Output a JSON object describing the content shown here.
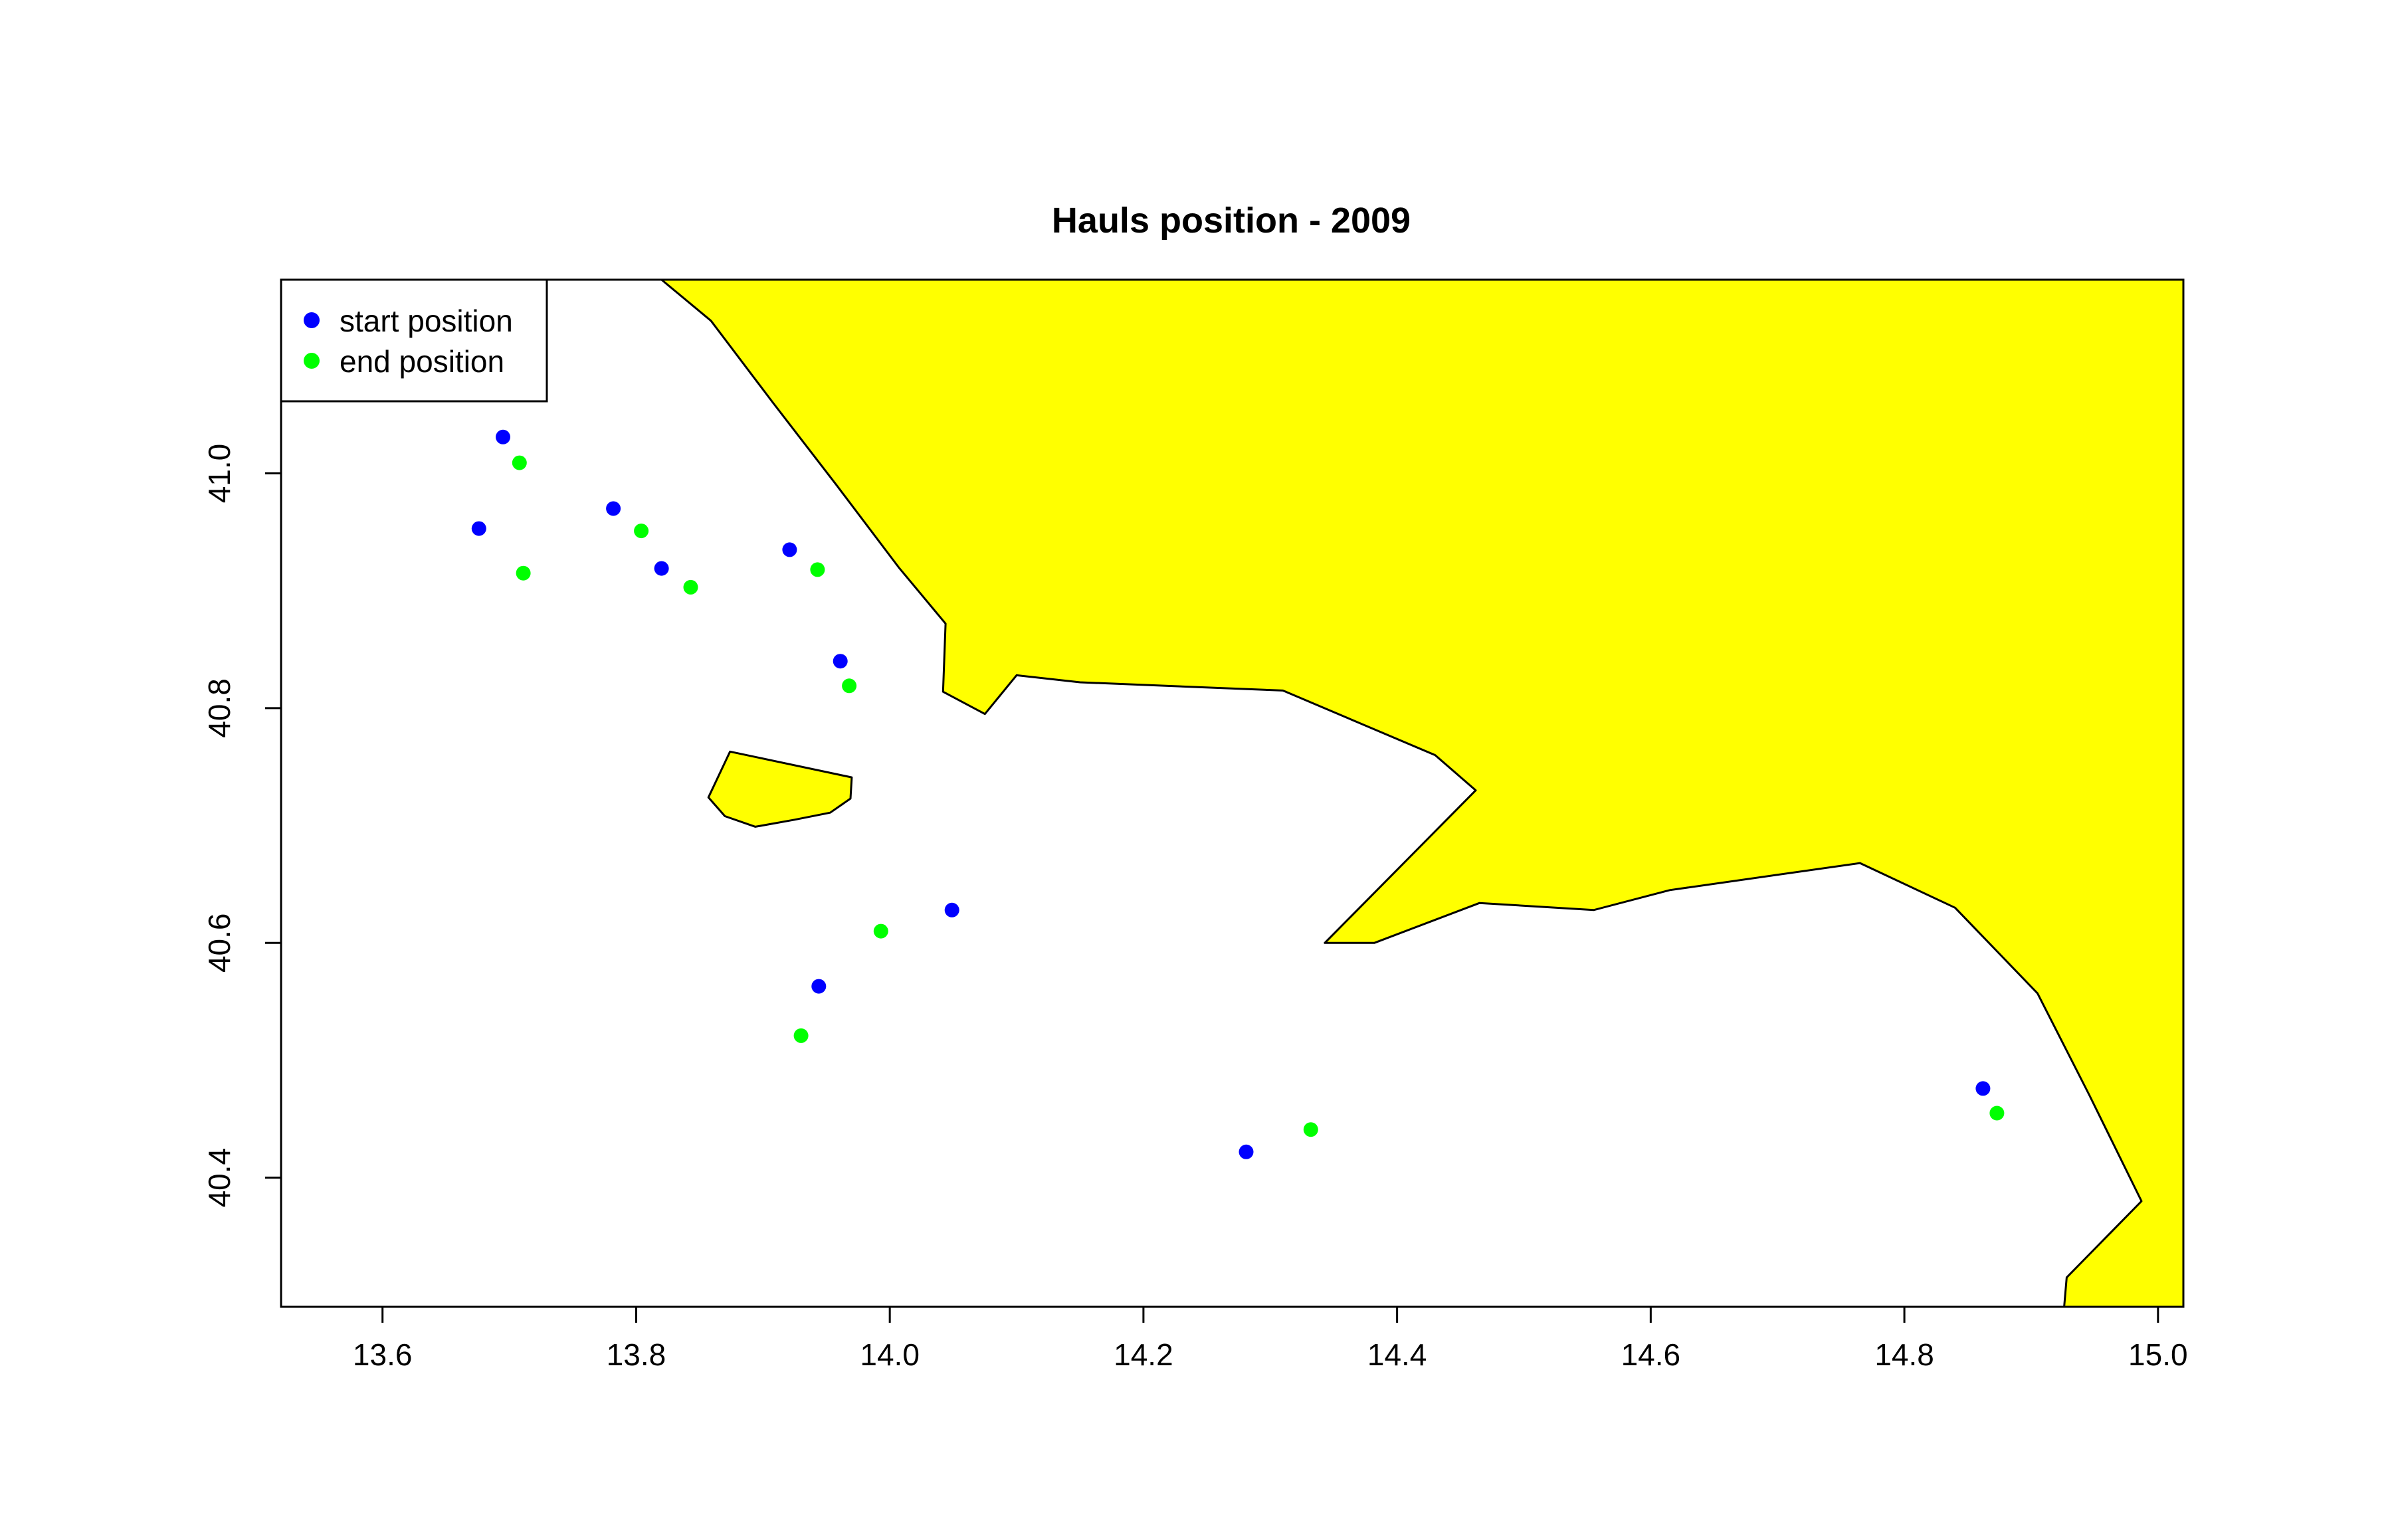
{
  "chart_data": {
    "type": "scatter",
    "title": "Hauls position -  2009",
    "xlabel": "",
    "ylabel": "",
    "xlim": [
      13.52,
      15.02
    ],
    "ylim": [
      40.29,
      41.165
    ],
    "x_ticks": [
      13.6,
      13.8,
      14.0,
      14.2,
      14.4,
      14.6,
      14.8,
      15.0
    ],
    "x_tick_labels": [
      "13.6",
      "13.8",
      "14.0",
      "14.2",
      "14.4",
      "14.6",
      "14.8",
      "15.0"
    ],
    "y_ticks": [
      40.4,
      40.6,
      40.8,
      41.0
    ],
    "y_tick_labels": [
      "40.4",
      "40.6",
      "40.8",
      "41.0"
    ],
    "grid": false,
    "legend_position": "top-left",
    "land_color": "#ffff00",
    "series": [
      {
        "name": "start position",
        "color": "#0000ff",
        "x": [
          13.695,
          13.676,
          13.782,
          13.82,
          13.921,
          13.961,
          13.944,
          14.049,
          14.281,
          14.862
        ],
        "y": [
          41.031,
          40.953,
          40.97,
          40.919,
          40.935,
          40.84,
          40.563,
          40.628,
          40.422,
          40.476
        ]
      },
      {
        "name": "end position",
        "color": "#00ff00",
        "x": [
          13.708,
          13.711,
          13.804,
          13.843,
          13.943,
          13.968,
          13.93,
          13.993,
          14.332,
          14.873
        ],
        "y": [
          41.009,
          40.915,
          40.951,
          40.903,
          40.918,
          40.819,
          40.521,
          40.61,
          40.441,
          40.455
        ]
      }
    ],
    "land": [
      [
        [
          13.82,
          41.165
        ],
        [
          13.859,
          41.13
        ],
        [
          13.908,
          41.06
        ],
        [
          13.958,
          40.99
        ],
        [
          14.007,
          40.92
        ],
        [
          14.044,
          40.872
        ],
        [
          14.042,
          40.814
        ],
        [
          14.075,
          40.795
        ],
        [
          14.1,
          40.828
        ],
        [
          14.15,
          40.822
        ],
        [
          14.31,
          40.815
        ],
        [
          14.43,
          40.76
        ],
        [
          14.462,
          40.73
        ],
        [
          14.343,
          40.6
        ],
        [
          14.382,
          40.6
        ],
        [
          14.465,
          40.634
        ],
        [
          14.555,
          40.628
        ],
        [
          14.615,
          40.645
        ],
        [
          14.765,
          40.668
        ],
        [
          14.84,
          40.63
        ],
        [
          14.905,
          40.557
        ],
        [
          14.946,
          40.47
        ],
        [
          14.987,
          40.38
        ],
        [
          14.928,
          40.315
        ],
        [
          14.926,
          40.29
        ],
        [
          15.02,
          40.29
        ],
        [
          15.02,
          41.165
        ]
      ],
      [
        [
          13.874,
          40.763
        ],
        [
          13.97,
          40.741
        ],
        [
          13.969,
          40.723
        ],
        [
          13.953,
          40.711
        ],
        [
          13.925,
          40.705
        ],
        [
          13.894,
          40.699
        ],
        [
          13.87,
          40.708
        ],
        [
          13.857,
          40.724
        ]
      ]
    ]
  }
}
